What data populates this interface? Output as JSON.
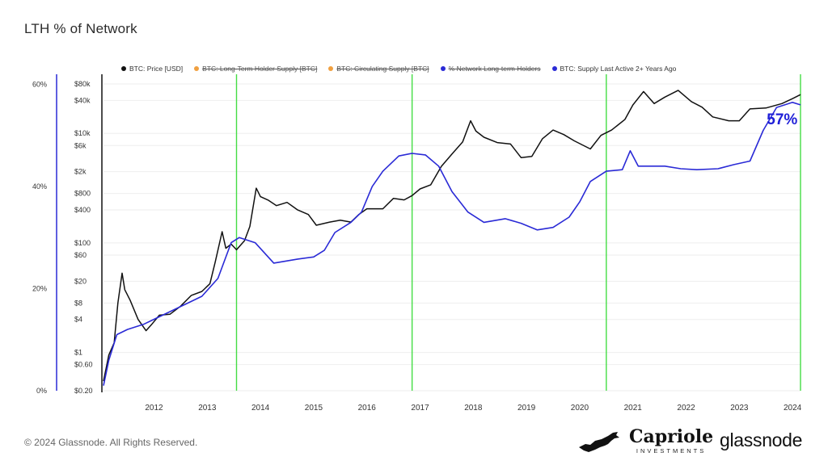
{
  "title": "LTH % of Network",
  "footer": {
    "copyright": "© 2024 Glassnode. All Rights Reserved."
  },
  "logos": {
    "capriole_name": "Capriole",
    "capriole_sub": "INVESTMENTS",
    "glassnode": "glassnode"
  },
  "colors": {
    "price": "#111111",
    "supply": "#2a2ad6",
    "marker": "#44dd44",
    "disabled": "#f0a040",
    "grid": "#eeeeee"
  },
  "legend": [
    {
      "label": "BTC: Price [USD]",
      "color": "#111111",
      "disabled": false
    },
    {
      "label": "BTC: Long-Term Holder Supply [BTC]",
      "color": "#f0a040",
      "disabled": true
    },
    {
      "label": "BTC: Circulating Supply [BTC]",
      "color": "#f0a040",
      "disabled": true
    },
    {
      "label": "% Network Long-term Holders",
      "color": "#2a2ad6",
      "disabled": true
    },
    {
      "label": "BTC: Supply Last Active 2+ Years Ago",
      "color": "#2a2ad6",
      "disabled": false
    }
  ],
  "chart_data": {
    "type": "line",
    "x_range": [
      2011.05,
      2024.15
    ],
    "x_ticks": [
      "2012",
      "2013",
      "2014",
      "2015",
      "2016",
      "2017",
      "2018",
      "2019",
      "2020",
      "2021",
      "2022",
      "2023",
      "2024"
    ],
    "left_axis": {
      "ticks": [
        "0%",
        "20%",
        "40%",
        "60%"
      ],
      "range": [
        0,
        0.62
      ]
    },
    "right_axis": {
      "scale": "log",
      "range": [
        0.2,
        120000
      ],
      "ticks": [
        "$80k",
        "$40k",
        "$10k",
        "$6k",
        "$2k",
        "$800",
        "$400",
        "$100",
        "$60",
        "$20",
        "$8",
        "$4",
        "$1",
        "$0.60",
        "$0.20"
      ],
      "tick_values": [
        80000,
        40000,
        10000,
        6000,
        2000,
        800,
        400,
        100,
        60,
        20,
        8,
        4,
        1,
        0.6,
        0.2
      ]
    },
    "vertical_markers": [
      2013.55,
      2016.85,
      2020.5,
      2024.15
    ],
    "annotation": {
      "text": "57%",
      "x": 2023.85,
      "y": 0.506
    },
    "series": [
      {
        "name": "BTC: Price [USD]",
        "axis": "right",
        "points": [
          [
            2011.05,
            0.3
          ],
          [
            2011.15,
            0.9
          ],
          [
            2011.25,
            1.5
          ],
          [
            2011.32,
            8
          ],
          [
            2011.4,
            28
          ],
          [
            2011.45,
            14
          ],
          [
            2011.55,
            9
          ],
          [
            2011.7,
            4
          ],
          [
            2011.85,
            2.5
          ],
          [
            2011.95,
            3.2
          ],
          [
            2012.1,
            4.8
          ],
          [
            2012.3,
            5
          ],
          [
            2012.5,
            7
          ],
          [
            2012.7,
            11
          ],
          [
            2012.9,
            13
          ],
          [
            2013.05,
            18
          ],
          [
            2013.15,
            45
          ],
          [
            2013.28,
            160
          ],
          [
            2013.35,
            80
          ],
          [
            2013.45,
            95
          ],
          [
            2013.55,
            75
          ],
          [
            2013.7,
            110
          ],
          [
            2013.8,
            200
          ],
          [
            2013.92,
            1000
          ],
          [
            2014.0,
            700
          ],
          [
            2014.15,
            600
          ],
          [
            2014.3,
            480
          ],
          [
            2014.5,
            550
          ],
          [
            2014.7,
            400
          ],
          [
            2014.9,
            330
          ],
          [
            2015.05,
            210
          ],
          [
            2015.3,
            240
          ],
          [
            2015.5,
            260
          ],
          [
            2015.7,
            240
          ],
          [
            2015.85,
            330
          ],
          [
            2016.0,
            420
          ],
          [
            2016.3,
            420
          ],
          [
            2016.5,
            650
          ],
          [
            2016.7,
            610
          ],
          [
            2016.85,
            730
          ],
          [
            2017.0,
            970
          ],
          [
            2017.2,
            1150
          ],
          [
            2017.4,
            2500
          ],
          [
            2017.6,
            4200
          ],
          [
            2017.8,
            7000
          ],
          [
            2017.95,
            17000
          ],
          [
            2018.05,
            11000
          ],
          [
            2018.2,
            8500
          ],
          [
            2018.45,
            6800
          ],
          [
            2018.7,
            6400
          ],
          [
            2018.9,
            3600
          ],
          [
            2019.1,
            3800
          ],
          [
            2019.3,
            8000
          ],
          [
            2019.5,
            11500
          ],
          [
            2019.7,
            9500
          ],
          [
            2019.9,
            7300
          ],
          [
            2020.2,
            5200
          ],
          [
            2020.4,
            9200
          ],
          [
            2020.6,
            11500
          ],
          [
            2020.85,
            18000
          ],
          [
            2021.0,
            33000
          ],
          [
            2021.2,
            58000
          ],
          [
            2021.4,
            35000
          ],
          [
            2021.6,
            46000
          ],
          [
            2021.85,
            61000
          ],
          [
            2022.1,
            38000
          ],
          [
            2022.3,
            30000
          ],
          [
            2022.5,
            20000
          ],
          [
            2022.8,
            17000
          ],
          [
            2023.0,
            17000
          ],
          [
            2023.2,
            28000
          ],
          [
            2023.5,
            29000
          ],
          [
            2023.8,
            35000
          ],
          [
            2024.0,
            43000
          ],
          [
            2024.15,
            51000
          ]
        ]
      },
      {
        "name": "BTC: Supply Last Active 2+ Years Ago",
        "axis": "left",
        "points": [
          [
            2011.05,
            0.01
          ],
          [
            2011.15,
            0.06
          ],
          [
            2011.3,
            0.11
          ],
          [
            2011.5,
            0.12
          ],
          [
            2011.8,
            0.13
          ],
          [
            2012.0,
            0.14
          ],
          [
            2012.3,
            0.155
          ],
          [
            2012.6,
            0.17
          ],
          [
            2012.9,
            0.185
          ],
          [
            2013.2,
            0.22
          ],
          [
            2013.45,
            0.29
          ],
          [
            2013.6,
            0.3
          ],
          [
            2013.9,
            0.29
          ],
          [
            2014.25,
            0.25
          ],
          [
            2014.7,
            0.258
          ],
          [
            2015.0,
            0.262
          ],
          [
            2015.2,
            0.275
          ],
          [
            2015.4,
            0.31
          ],
          [
            2015.7,
            0.33
          ],
          [
            2015.9,
            0.35
          ],
          [
            2016.1,
            0.4
          ],
          [
            2016.3,
            0.43
          ],
          [
            2016.6,
            0.46
          ],
          [
            2016.85,
            0.465
          ],
          [
            2017.1,
            0.462
          ],
          [
            2017.35,
            0.44
          ],
          [
            2017.6,
            0.39
          ],
          [
            2017.9,
            0.35
          ],
          [
            2018.2,
            0.33
          ],
          [
            2018.6,
            0.337
          ],
          [
            2018.9,
            0.328
          ],
          [
            2019.2,
            0.315
          ],
          [
            2019.5,
            0.32
          ],
          [
            2019.8,
            0.34
          ],
          [
            2020.0,
            0.37
          ],
          [
            2020.2,
            0.41
          ],
          [
            2020.5,
            0.43
          ],
          [
            2020.8,
            0.433
          ],
          [
            2020.95,
            0.47
          ],
          [
            2021.1,
            0.44
          ],
          [
            2021.3,
            0.44
          ],
          [
            2021.6,
            0.44
          ],
          [
            2021.9,
            0.435
          ],
          [
            2022.2,
            0.433
          ],
          [
            2022.6,
            0.435
          ],
          [
            2022.9,
            0.443
          ],
          [
            2023.2,
            0.45
          ],
          [
            2023.45,
            0.51
          ],
          [
            2023.7,
            0.555
          ],
          [
            2024.0,
            0.565
          ],
          [
            2024.15,
            0.56
          ]
        ]
      }
    ]
  }
}
